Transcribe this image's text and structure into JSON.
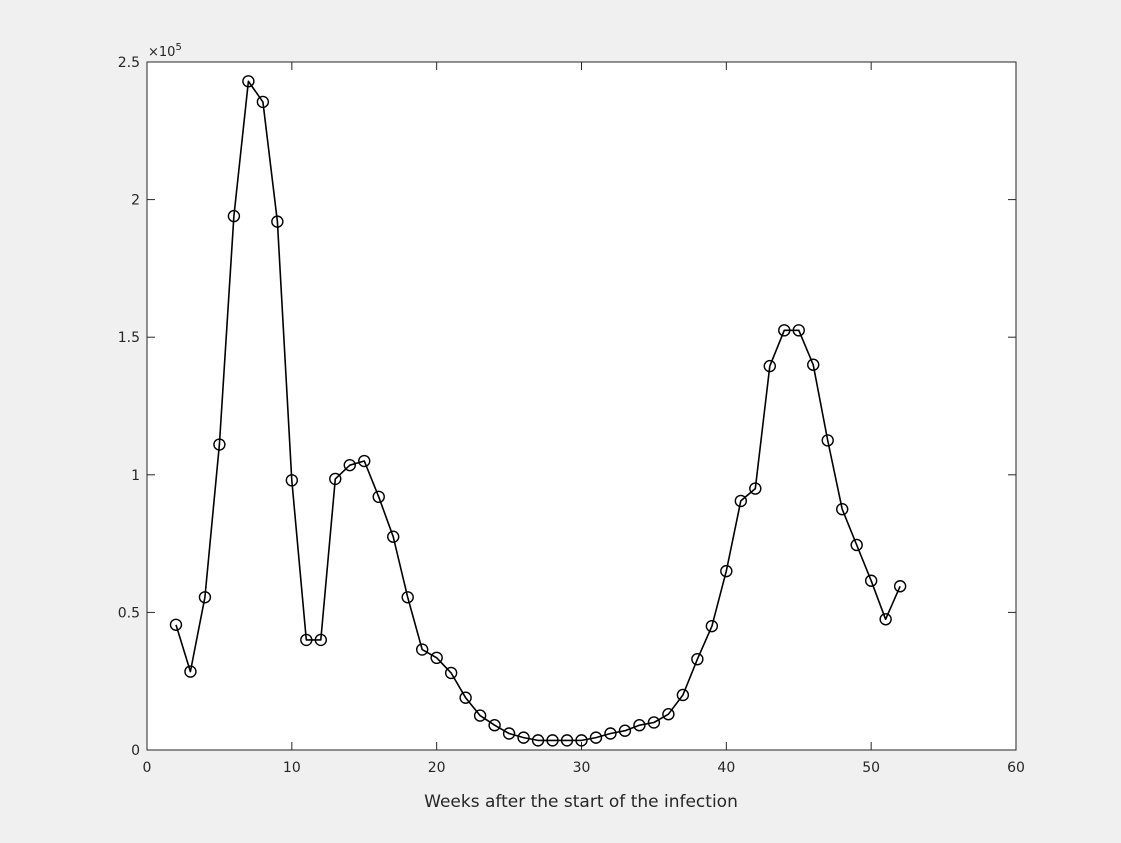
{
  "chart_data": {
    "type": "line",
    "title": "",
    "xlabel": "Weeks after the start of the infection",
    "ylabel": "",
    "xlim": [
      0,
      60
    ],
    "ylim": [
      0,
      250000
    ],
    "xticks": [
      0,
      10,
      20,
      30,
      40,
      50,
      60
    ],
    "xtick_labels": [
      "0",
      "10",
      "20",
      "30",
      "40",
      "50",
      "60"
    ],
    "yticks": [
      0,
      50000,
      100000,
      150000,
      200000,
      250000
    ],
    "ytick_labels": [
      "0",
      "0.5",
      "1",
      "1.5",
      "2",
      "2.5"
    ],
    "y_exponent_label": "×10",
    "y_exponent_power": "5",
    "grid": false,
    "legend": "none",
    "series": [
      {
        "marker": "circle",
        "line_color": "#000000",
        "x": [
          2,
          3,
          4,
          5,
          6,
          7,
          8,
          9,
          10,
          11,
          12,
          13,
          14,
          15,
          16,
          17,
          18,
          19,
          20,
          21,
          22,
          23,
          24,
          25,
          26,
          27,
          28,
          29,
          30,
          31,
          32,
          33,
          34,
          35,
          36,
          37,
          38,
          39,
          40,
          41,
          42,
          43,
          44,
          45,
          46,
          47,
          48,
          49,
          50,
          51,
          52
        ],
        "y": [
          45500,
          28500,
          55500,
          111000,
          194000,
          243000,
          235500,
          192000,
          98000,
          40000,
          40000,
          98500,
          103500,
          105000,
          92000,
          77500,
          55500,
          36500,
          33500,
          28000,
          19000,
          12500,
          9000,
          6000,
          4500,
          3500,
          3500,
          3500,
          3500,
          4500,
          6000,
          7000,
          9000,
          10000,
          13000,
          20000,
          33000,
          45000,
          65000,
          90500,
          95000,
          139500,
          152500,
          152500,
          140000,
          112500,
          87500,
          74500,
          61500,
          47500,
          59500
        ]
      }
    ]
  }
}
